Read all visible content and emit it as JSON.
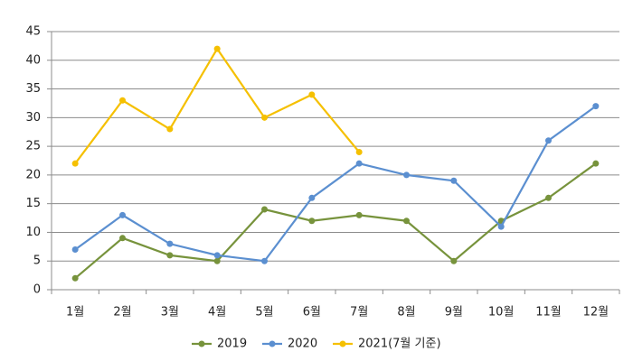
{
  "chart_data": {
    "type": "line",
    "categories": [
      "1월",
      "2월",
      "3월",
      "4월",
      "5월",
      "6월",
      "7월",
      "8월",
      "9월",
      "10월",
      "11월",
      "12월"
    ],
    "series": [
      {
        "name": "2019",
        "color": "#77933c",
        "values": [
          2,
          9,
          6,
          5,
          14,
          12,
          13,
          12,
          5,
          12,
          16,
          22
        ]
      },
      {
        "name": "2020",
        "color": "#5b8fd0",
        "values": [
          7,
          13,
          8,
          6,
          5,
          16,
          22,
          20,
          19,
          11,
          26,
          32
        ]
      },
      {
        "name": "2021(7월 기준)",
        "color": "#f5c000",
        "values": [
          22,
          33,
          28,
          42,
          30,
          34,
          24,
          null,
          null,
          null,
          null,
          null
        ]
      }
    ],
    "ylim": [
      0,
      45
    ],
    "yticks": [
      0,
      5,
      10,
      15,
      20,
      25,
      30,
      35,
      40,
      45
    ],
    "grid": true,
    "legend": "bottom"
  }
}
